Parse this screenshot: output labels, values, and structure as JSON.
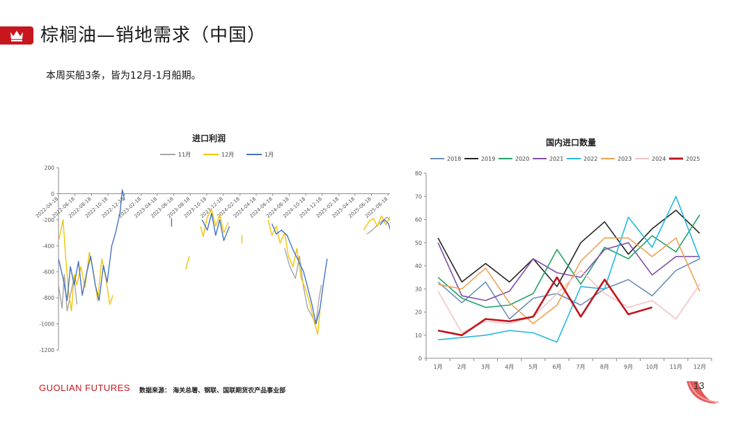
{
  "header": {
    "title": "棕榈油—销地需求（中国）",
    "logo_icon": "crown-icon",
    "accent_color": "#c8161e"
  },
  "summary_text": "本周买船3条，皆为12月-1月船期。",
  "footer": {
    "brand": "GUOLIAN FUTURES",
    "source": "数据来源： 海关总署、钢联、国联期货农产品事业部",
    "page_number": "13"
  },
  "chart_data": [
    {
      "type": "line",
      "title": "进口利润",
      "xlabel": "",
      "ylabel": "",
      "ylim": [
        -1200,
        200
      ],
      "yticks": [
        200,
        0,
        -200,
        -400,
        -600,
        -800,
        -1000,
        -1200
      ],
      "xlim": [
        "2022-04-18",
        "2025-09-20"
      ],
      "xticks": [
        "2022-04-18",
        "2022-06-18",
        "2022-08-18",
        "2022-10-18",
        "2022-12-18",
        "2023-02-18",
        "2023-04-18",
        "2023-06-18",
        "2023-08-18",
        "2023-10-18",
        "2023-12-18",
        "2024-02-18",
        "2024-04-18",
        "2024-06-18",
        "2024-08-18",
        "2024-10-18",
        "2024-12-18",
        "2025-02-18",
        "2025-04-18",
        "2025-06-18",
        "2025-08-18"
      ],
      "legend_position": "top",
      "series": [
        {
          "name": "11月",
          "color": "#a6a6a6",
          "points": [
            [
              "2022-04-18",
              -700
            ],
            [
              "2022-05-01",
              -880
            ],
            [
              "2022-05-10",
              -620
            ],
            [
              "2022-05-20",
              -900
            ],
            [
              "2022-06-01",
              -780
            ],
            [
              "2022-06-15",
              -640
            ],
            [
              "2022-06-25",
              -850
            ],
            [
              "2024-08-01",
              -420
            ],
            [
              "2024-08-20",
              -560
            ],
            [
              "2024-09-10",
              -650
            ],
            [
              "2024-09-25",
              -480
            ],
            [
              "2024-10-10",
              -720
            ],
            [
              "2024-10-25",
              -880
            ],
            [
              "2024-11-10",
              -940
            ],
            [
              "2024-11-25",
              -1000
            ],
            [
              "2024-12-05",
              -820
            ],
            [
              "2024-12-15",
              -700
            ],
            [
              "2025-06-01",
              -310
            ],
            [
              "2025-06-15",
              -290
            ],
            [
              "2025-07-01",
              -260
            ],
            [
              "2025-07-15",
              -230
            ],
            [
              "2025-08-01",
              -200
            ],
            [
              "2025-08-15",
              -180
            ],
            [
              "2025-09-01",
              -220
            ]
          ]
        },
        {
          "name": "12月",
          "color": "#f2c500",
          "points": [
            [
              "2022-04-20",
              -350
            ],
            [
              "2022-05-05",
              -200
            ],
            [
              "2022-05-15",
              -500
            ],
            [
              "2022-05-25",
              -750
            ],
            [
              "2022-06-05",
              -900
            ],
            [
              "2022-06-15",
              -620
            ],
            [
              "2022-06-25",
              -700
            ],
            [
              "2022-07-10",
              -560
            ],
            [
              "2022-07-25",
              -720
            ],
            [
              "2022-08-10",
              -450
            ],
            [
              "2022-08-25",
              -600
            ],
            [
              "2022-09-10",
              -820
            ],
            [
              "2022-09-25",
              -500
            ],
            [
              "2022-10-10",
              -650
            ],
            [
              "2022-10-25",
              -850
            ],
            [
              "2022-11-05",
              -780
            ],
            [
              "2023-08-01",
              -580
            ],
            [
              "2023-08-15",
              -480
            ],
            [
              "2023-09-25",
              -250
            ],
            [
              "2023-10-05",
              -330
            ],
            [
              "2023-10-20",
              -180
            ],
            [
              "2023-11-05",
              -120
            ],
            [
              "2023-11-20",
              -250
            ],
            [
              "2023-12-05",
              -160
            ],
            [
              "2023-12-20",
              -300
            ],
            [
              "2024-01-05",
              -220
            ],
            [
              "2024-02-25",
              -350
            ],
            [
              "2024-06-01",
              -200
            ],
            [
              "2024-06-15",
              -320
            ],
            [
              "2024-07-01",
              -250
            ],
            [
              "2024-07-15",
              -380
            ],
            [
              "2024-08-01",
              -300
            ],
            [
              "2024-08-15",
              -480
            ],
            [
              "2024-09-01",
              -560
            ],
            [
              "2024-09-15",
              -420
            ],
            [
              "2024-10-01",
              -650
            ],
            [
              "2024-10-15",
              -720
            ],
            [
              "2024-11-01",
              -830
            ],
            [
              "2024-11-15",
              -960
            ],
            [
              "2024-12-01",
              -1080
            ],
            [
              "2024-12-10",
              -900
            ],
            [
              "2025-05-20",
              -280
            ],
            [
              "2025-06-10",
              -210
            ],
            [
              "2025-06-25",
              -190
            ],
            [
              "2025-07-10",
              -250
            ],
            [
              "2025-07-25",
              -170
            ],
            [
              "2025-08-10",
              -240
            ],
            [
              "2025-08-25",
              -180
            ],
            [
              "2025-09-10",
              -260
            ]
          ]
        },
        {
          "name": "1月",
          "color": "#4472c4",
          "points": [
            [
              "2022-04-18",
              -500
            ],
            [
              "2022-05-05",
              -650
            ],
            [
              "2022-05-20",
              -820
            ],
            [
              "2022-06-01",
              -560
            ],
            [
              "2022-06-15",
              -700
            ],
            [
              "2022-07-01",
              -520
            ],
            [
              "2022-07-15",
              -780
            ],
            [
              "2022-08-01",
              -600
            ],
            [
              "2022-08-15",
              -480
            ],
            [
              "2022-09-01",
              -700
            ],
            [
              "2022-09-15",
              -820
            ],
            [
              "2022-10-01",
              -550
            ],
            [
              "2022-10-15",
              -680
            ],
            [
              "2022-11-01",
              -400
            ],
            [
              "2022-11-15",
              -300
            ],
            [
              "2022-12-01",
              -150
            ],
            [
              "2022-12-10",
              30
            ],
            [
              "2022-12-18",
              -50
            ],
            [
              "2023-06-10",
              -220
            ],
            [
              "2023-10-01",
              -200
            ],
            [
              "2023-10-20",
              -280
            ],
            [
              "2023-11-05",
              -150
            ],
            [
              "2023-11-20",
              -320
            ],
            [
              "2023-12-05",
              -200
            ],
            [
              "2023-12-20",
              -360
            ],
            [
              "2024-01-10",
              -250
            ],
            [
              "2024-06-15",
              -230
            ],
            [
              "2024-07-01",
              -310
            ],
            [
              "2024-07-20",
              -280
            ],
            [
              "2024-08-10",
              -320
            ],
            [
              "2024-09-01",
              -430
            ],
            [
              "2024-09-20",
              -510
            ],
            [
              "2024-10-10",
              -600
            ],
            [
              "2024-10-25",
              -720
            ],
            [
              "2024-11-10",
              -850
            ],
            [
              "2024-11-25",
              -1000
            ],
            [
              "2024-12-10",
              -880
            ],
            [
              "2024-12-20",
              -720
            ],
            [
              "2025-01-05",
              -500
            ],
            [
              "2025-07-20",
              -240
            ],
            [
              "2025-08-05",
              -200
            ],
            [
              "2025-08-20",
              -230
            ],
            [
              "2025-09-01",
              -320
            ],
            [
              "2025-09-15",
              -350
            ]
          ]
        }
      ]
    },
    {
      "type": "line",
      "title": "国内进口数量",
      "xlabel": "",
      "ylabel": "",
      "categories": [
        "1月",
        "2月",
        "3月",
        "4月",
        "5月",
        "6月",
        "7月",
        "8月",
        "9月",
        "10月",
        "11月",
        "12月"
      ],
      "ylim": [
        0,
        80
      ],
      "yticks": [
        0,
        10,
        20,
        30,
        40,
        50,
        60,
        70,
        80
      ],
      "legend_position": "top",
      "series": [
        {
          "name": "2018",
          "color": "#6a8fb5",
          "values": [
            33,
            24,
            33,
            17,
            26,
            28,
            23,
            30,
            34,
            27,
            38,
            43
          ]
        },
        {
          "name": "2019",
          "color": "#222222",
          "values": [
            52,
            33,
            41,
            33,
            43,
            31,
            50,
            59,
            45,
            56,
            64,
            54
          ]
        },
        {
          "name": "2020",
          "color": "#21a366",
          "values": [
            35,
            26,
            22,
            23,
            28,
            47,
            32,
            48,
            43,
            53,
            46,
            62
          ]
        },
        {
          "name": "2021",
          "color": "#7f4fa8",
          "values": [
            50,
            27,
            25,
            29,
            43,
            37,
            35,
            47,
            50,
            36,
            44,
            44
          ]
        },
        {
          "name": "2022",
          "color": "#25b8e0",
          "values": [
            8,
            9,
            10,
            12,
            11,
            7,
            31,
            30,
            61,
            48,
            70,
            43
          ]
        },
        {
          "name": "2023",
          "color": "#f0a050",
          "values": [
            32,
            30,
            39,
            24,
            15,
            23,
            42,
            52,
            52,
            44,
            52,
            29
          ]
        },
        {
          "name": "2024",
          "color": "#f2c4c4",
          "values": [
            29,
            11,
            16,
            15,
            18,
            28,
            38,
            28,
            22,
            25,
            17,
            32
          ]
        },
        {
          "name": "2025",
          "color": "#c0141c",
          "values": [
            12,
            10,
            17,
            16,
            18,
            35,
            18,
            34,
            19,
            22,
            null,
            null
          ]
        }
      ]
    }
  ]
}
